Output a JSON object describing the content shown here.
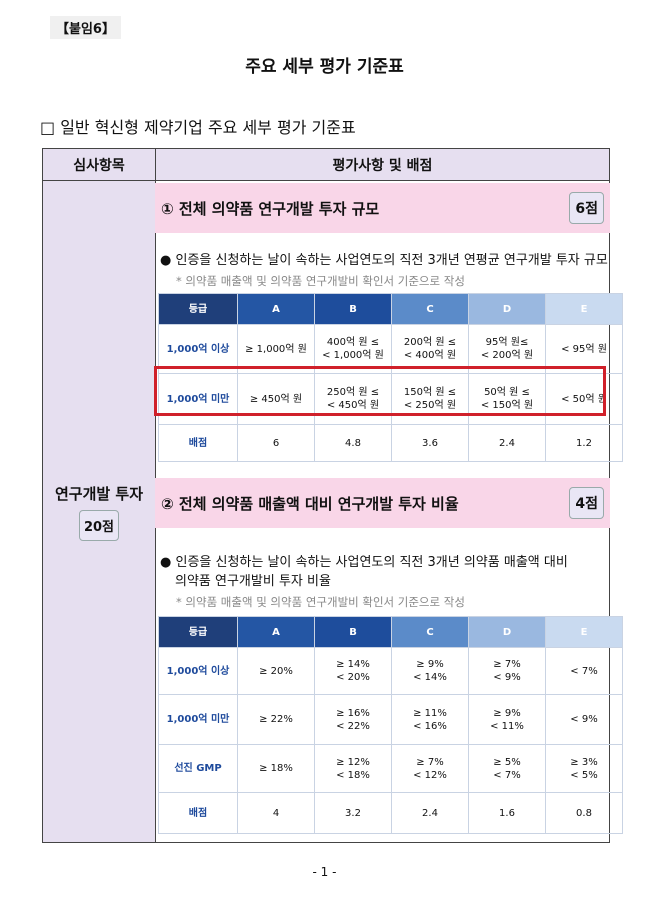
{
  "header": {
    "tag": "【붙임6】",
    "title": "주요 세부 평가 기준표"
  },
  "section": {
    "heading": "□ 일반 혁신형 제약기업 주요 세부 평가 기준표"
  },
  "table": {
    "headers": [
      "심사항목",
      "평가사항 및 배점"
    ],
    "category": {
      "label": "연구개발 투자",
      "score": "20점"
    },
    "items": [
      {
        "title": "① 전체 의약품 연구개발 투자 규모",
        "score": "6점",
        "bullet": [
          "인증을 신청하는 날이 속하는 사업연도의 직전 3개년 연평균 연구개발 투자 규모"
        ],
        "note": "* 의약품 매출액 및 의약품 연구개발비 확인서 기준으로 작성",
        "grid": {
          "header": [
            "등급",
            "A",
            "B",
            "C",
            "D",
            "E"
          ],
          "rows": [
            [
              [
                "1,000억 이상"
              ],
              [
                "≥ 1,000억 원"
              ],
              [
                "400억 원 ≤",
                "< 1,000억 원"
              ],
              [
                "200억 원 ≤",
                "< 400억 원"
              ],
              [
                "95억 원≤",
                "< 200억 원"
              ],
              [
                "< 95억 원"
              ]
            ],
            [
              [
                "1,000억 미만"
              ],
              [
                "≥ 450억 원"
              ],
              [
                "250억 원 ≤",
                "< 450억 원"
              ],
              [
                "150억 원 ≤",
                "< 250억 원"
              ],
              [
                "50억 원 ≤",
                "< 150억 원"
              ],
              [
                "< 50억 원"
              ]
            ],
            [
              [
                "배점"
              ],
              [
                "6"
              ],
              [
                "4.8"
              ],
              [
                "3.6"
              ],
              [
                "2.4"
              ],
              [
                "1.2"
              ]
            ]
          ]
        }
      },
      {
        "title": "② 전체 의약품 매출액 대비 연구개발 투자 비율",
        "score": "4점",
        "bullet": [
          "인증을 신청하는 날이 속하는 사업연도의 직전 3개년 의약품 매출액 대비",
          "의약품 연구개발비 투자 비율"
        ],
        "note": "* 의약품 매출액 및 의약품 연구개발비 확인서 기준으로 작성",
        "grid": {
          "header": [
            "등급",
            "A",
            "B",
            "C",
            "D",
            "E"
          ],
          "rows": [
            [
              [
                "1,000억 이상"
              ],
              [
                "≥ 20%"
              ],
              [
                "≥ 14%",
                "< 20%"
              ],
              [
                "≥ 9%",
                "< 14%"
              ],
              [
                "≥ 7%",
                "< 9%"
              ],
              [
                "< 7%"
              ]
            ],
            [
              [
                "1,000억 미만"
              ],
              [
                "≥ 22%"
              ],
              [
                "≥ 16%",
                "< 22%"
              ],
              [
                "≥ 11%",
                "< 16%"
              ],
              [
                "≥ 9%",
                "< 11%"
              ],
              [
                "< 9%"
              ]
            ],
            [
              [
                "선진 GMP"
              ],
              [
                "≥ 18%"
              ],
              [
                "≥ 12%",
                "< 18%"
              ],
              [
                "≥ 7%",
                "< 12%"
              ],
              [
                "≥ 5%",
                "< 7%"
              ],
              [
                "≥ 3%",
                "< 5%"
              ]
            ],
            [
              [
                "배점"
              ],
              [
                "4"
              ],
              [
                "3.2"
              ],
              [
                "2.4"
              ],
              [
                "1.6"
              ],
              [
                "0.8"
              ]
            ]
          ]
        }
      }
    ]
  },
  "footer": "- 1 -"
}
